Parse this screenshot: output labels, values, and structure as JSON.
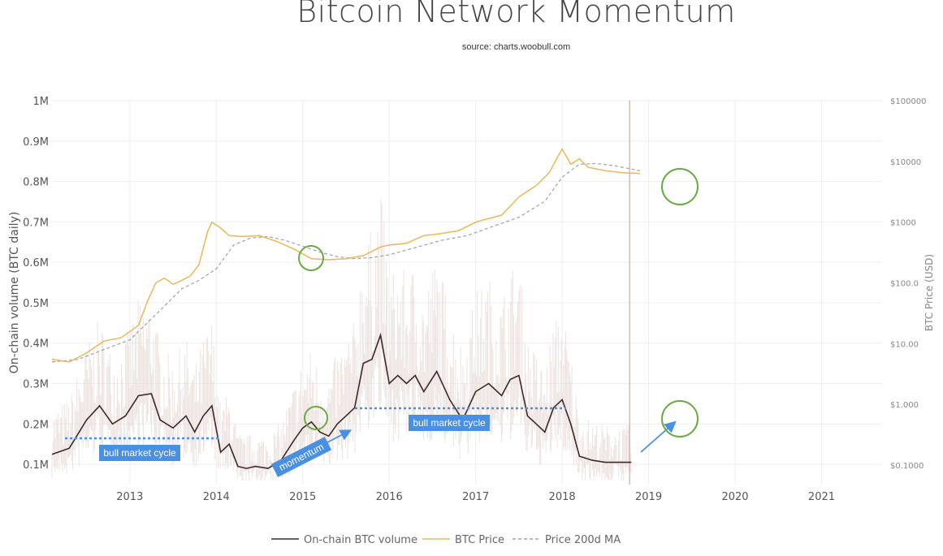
{
  "title": "Bitcoin Network Momentum",
  "subtitle": "source: charts.woobull.com",
  "chart_data": {
    "type": "line",
    "title": "Bitcoin Network Momentum",
    "subtitle": "source: charts.woobull.com",
    "ylabel": "On-chain volume (BTC daily)",
    "y2label": "BTC Price (USD)",
    "xlim": [
      2012.1,
      2021.7
    ],
    "ylim": [
      0.05,
      1.0
    ],
    "y2_scale": "log",
    "y2lim": [
      0.1,
      100000
    ],
    "grid": true,
    "legend_position": "bottom-center",
    "x_ticks": [
      "2013",
      "2014",
      "2015",
      "2016",
      "2017",
      "2018",
      "2019",
      "2020",
      "2021"
    ],
    "x_tick_values": [
      2013,
      2014,
      2015,
      2016,
      2017,
      2018,
      2019,
      2020,
      2021
    ],
    "y_ticks": [
      "0.1M",
      "0.2M",
      "0.3M",
      "0.4M",
      "0.5M",
      "0.6M",
      "0.7M",
      "0.8M",
      "0.9M",
      "1M"
    ],
    "y_tick_values": [
      0.1,
      0.2,
      0.3,
      0.4,
      0.5,
      0.6,
      0.7,
      0.8,
      0.9,
      1.0
    ],
    "y2_ticks": [
      "$0.1000",
      "$1.000",
      "$10.00",
      "$100.0",
      "$1000",
      "$10000",
      "$100000"
    ],
    "y2_tick_values": [
      0.1,
      1,
      10,
      100,
      1000,
      10000,
      100000
    ],
    "vline_x": 2018.78,
    "colors": {
      "volume": "#3d2a26",
      "volume_raw": "#e8dcd8",
      "price": "#e8b85a",
      "ma": "#9aa0b8",
      "grid": "#eeeeee",
      "vline": "#e0a0a0",
      "annot_bg": "#4a90e2",
      "annot_line": "#4a90e2",
      "circle": "#6aaa44"
    },
    "series": [
      {
        "name": "On-chain BTC volume",
        "axis": "left",
        "x": [
          2012.1,
          2012.3,
          2012.5,
          2012.65,
          2012.8,
          2012.95,
          2013.1,
          2013.25,
          2013.35,
          2013.5,
          2013.65,
          2013.75,
          2013.85,
          2013.95,
          2014.05,
          2014.15,
          2014.25,
          2014.35,
          2014.45,
          2014.6,
          2014.75,
          2014.9,
          2015.0,
          2015.1,
          2015.2,
          2015.3,
          2015.4,
          2015.5,
          2015.6,
          2015.7,
          2015.8,
          2015.9,
          2016.0,
          2016.1,
          2016.2,
          2016.3,
          2016.4,
          2016.55,
          2016.7,
          2016.85,
          2017.0,
          2017.15,
          2017.3,
          2017.4,
          2017.5,
          2017.6,
          2017.7,
          2017.8,
          2017.9,
          2018.0,
          2018.1,
          2018.2,
          2018.35,
          2018.5,
          2018.65,
          2018.8
        ],
        "values": [
          0.125,
          0.14,
          0.21,
          0.245,
          0.2,
          0.22,
          0.27,
          0.275,
          0.21,
          0.19,
          0.22,
          0.18,
          0.22,
          0.245,
          0.13,
          0.15,
          0.095,
          0.09,
          0.095,
          0.09,
          0.11,
          0.16,
          0.19,
          0.205,
          0.18,
          0.17,
          0.2,
          0.22,
          0.24,
          0.35,
          0.36,
          0.42,
          0.3,
          0.32,
          0.3,
          0.32,
          0.28,
          0.33,
          0.26,
          0.21,
          0.28,
          0.3,
          0.27,
          0.31,
          0.32,
          0.22,
          0.2,
          0.18,
          0.24,
          0.26,
          0.2,
          0.12,
          0.11,
          0.105,
          0.105,
          0.105
        ]
      },
      {
        "name": "BTC Price",
        "axis": "right",
        "x": [
          2012.1,
          2012.3,
          2012.5,
          2012.7,
          2012.9,
          2013.1,
          2013.2,
          2013.3,
          2013.4,
          2013.5,
          2013.6,
          2013.7,
          2013.8,
          2013.9,
          2013.95,
          2014.05,
          2014.15,
          2014.3,
          2014.5,
          2014.7,
          2014.9,
          2015.0,
          2015.1,
          2015.3,
          2015.5,
          2015.7,
          2015.9,
          2016.0,
          2016.2,
          2016.4,
          2016.6,
          2016.8,
          2017.0,
          2017.1,
          2017.3,
          2017.5,
          2017.7,
          2017.85,
          2017.95,
          2018.0,
          2018.1,
          2018.2,
          2018.3,
          2018.5,
          2018.7,
          2018.9
        ],
        "values": [
          5.5,
          5.0,
          7.0,
          11.0,
          12.5,
          20,
          48,
          100,
          120,
          95,
          110,
          130,
          200,
          700,
          1000,
          800,
          600,
          580,
          600,
          480,
          360,
          300,
          250,
          240,
          250,
          280,
          390,
          420,
          450,
          600,
          650,
          720,
          1000,
          1100,
          1300,
          2600,
          4000,
          6500,
          12000,
          16000,
          9000,
          11000,
          8000,
          7000,
          6500,
          6300
        ]
      },
      {
        "name": "Price 200d MA",
        "axis": "right",
        "x": [
          2012.1,
          2012.4,
          2012.7,
          2013.0,
          2013.3,
          2013.6,
          2013.8,
          2014.0,
          2014.2,
          2014.4,
          2014.6,
          2014.8,
          2015.0,
          2015.2,
          2015.4,
          2015.6,
          2015.8,
          2016.0,
          2016.3,
          2016.6,
          2016.9,
          2017.2,
          2017.5,
          2017.8,
          2018.0,
          2018.2,
          2018.4,
          2018.6,
          2018.8,
          2018.9
        ],
        "values": [
          5.0,
          5.5,
          8.0,
          11.5,
          30,
          80,
          110,
          170,
          420,
          550,
          580,
          500,
          400,
          320,
          270,
          250,
          260,
          290,
          380,
          500,
          600,
          850,
          1200,
          2200,
          5500,
          9000,
          9200,
          8500,
          7500,
          7000
        ]
      }
    ],
    "annotations": [
      "bull market cycle",
      "momentum",
      "bull market cycle"
    ]
  }
}
